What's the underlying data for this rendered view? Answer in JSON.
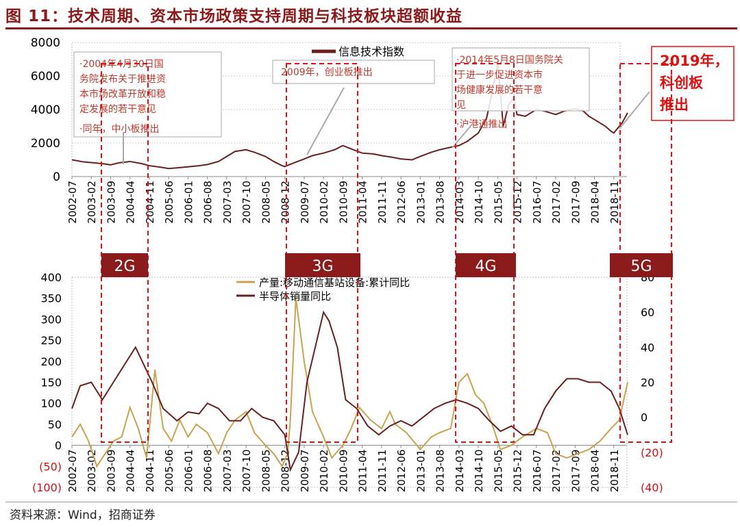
{
  "title": "图 11：技术周期、资本市场政策支持周期与科技板块超额收益",
  "source": "资料来源：Wind，招商证券",
  "colors": {
    "title": "#8b1a1a",
    "index_line": "#6b1e1e",
    "semi_line": "#6b1e1e",
    "base_station_line": "#c9a24e",
    "gen_box": "#8b1a1a",
    "dash_box": "#e01010",
    "negative_tick": "#d01010"
  },
  "chart_data": [
    {
      "type": "line",
      "x_ticks": [
        "2002-07",
        "2003-02",
        "2003-09",
        "2004-04",
        "2004-11",
        "2005-06",
        "2006-01",
        "2006-08",
        "2007-03",
        "2007-10",
        "2008-05",
        "2008-12",
        "2009-07",
        "2010-02",
        "2010-09",
        "2011-04",
        "2011-11",
        "2012-06",
        "2013-01",
        "2013-08",
        "2014-03",
        "2014-10",
        "2015-05",
        "2015-12",
        "2016-07",
        "2017-02",
        "2017-09",
        "2018-04",
        "2018-11"
      ],
      "ylim": [
        0,
        8000
      ],
      "y_ticks": [
        "0",
        "2000",
        "4000",
        "6000",
        "8000"
      ],
      "series": [
        {
          "name": "信息技术指数",
          "x": [
            "2002-07",
            "2002-11",
            "2003-03",
            "2003-07",
            "2003-09",
            "2003-12",
            "2004-04",
            "2004-08",
            "2004-11",
            "2005-03",
            "2005-06",
            "2005-09",
            "2006-01",
            "2006-05",
            "2006-08",
            "2006-12",
            "2007-03",
            "2007-06",
            "2007-10",
            "2008-01",
            "2008-05",
            "2008-08",
            "2008-11",
            "2008-12",
            "2009-03",
            "2009-07",
            "2009-10",
            "2010-02",
            "2010-06",
            "2010-09",
            "2010-12",
            "2011-04",
            "2011-08",
            "2011-11",
            "2012-03",
            "2012-06",
            "2012-10",
            "2013-01",
            "2013-05",
            "2013-08",
            "2013-12",
            "2014-03",
            "2014-06",
            "2014-10",
            "2015-01",
            "2015-03",
            "2015-05",
            "2015-06",
            "2015-07",
            "2015-09",
            "2015-11",
            "2015-12",
            "2016-03",
            "2016-07",
            "2016-10",
            "2017-02",
            "2017-05",
            "2017-09",
            "2017-12",
            "2018-02",
            "2018-04",
            "2018-08",
            "2018-10",
            "2018-11",
            "2019-02",
            "2019-04"
          ],
          "values": [
            1000,
            880,
            820,
            750,
            700,
            820,
            900,
            780,
            650,
            560,
            480,
            520,
            580,
            650,
            720,
            900,
            1200,
            1500,
            1600,
            1450,
            1200,
            900,
            650,
            600,
            800,
            1050,
            1250,
            1400,
            1600,
            1850,
            1650,
            1400,
            1350,
            1250,
            1150,
            1050,
            1000,
            1200,
            1450,
            1600,
            1750,
            1850,
            2100,
            2600,
            3500,
            5000,
            6800,
            5000,
            3000,
            4300,
            4700,
            3700,
            3600,
            4000,
            3900,
            3700,
            3900,
            4050,
            3900,
            3600,
            3400,
            3000,
            2700,
            2600,
            3200,
            3800
          ]
        }
      ],
      "annotations": [
        "·2004年4月30日国务院发布关于推进资本市场改革开放和稳定发展的若干意见",
        "·同年，中小板推出",
        "2009年，创业板推出",
        "·2014年5月8日国务院关于进一步促进资本市场健康发展的若干意见",
        "·沪港通推出",
        "2019年，科创板推出"
      ]
    },
    {
      "type": "line",
      "x_ticks": [
        "2002-07",
        "2003-02",
        "2003-09",
        "2004-04",
        "2004-11",
        "2005-06",
        "2006-01",
        "2006-08",
        "2007-03",
        "2007-10",
        "2008-05",
        "2008-12",
        "2009-07",
        "2010-02",
        "2010-09",
        "2011-04",
        "2011-11",
        "2012-06",
        "2013-01",
        "2013-08",
        "2014-03",
        "2014-10",
        "2015-05",
        "2015-12",
        "2016-07",
        "2017-02",
        "2017-09",
        "2018-04",
        "2018-11"
      ],
      "y_left_ticks": [
        "(100)",
        "(50)",
        "0",
        "50",
        "100",
        "150",
        "200",
        "250",
        "300",
        "350",
        "400"
      ],
      "y_right_ticks": [
        "(40)",
        "(20)",
        "0",
        "20",
        "40",
        "60",
        "80"
      ],
      "y_left_lim": [
        -100,
        400
      ],
      "y_right_lim": [
        -40,
        80
      ],
      "series": [
        {
          "name": "产量:移动通信基站设备:累计同比",
          "axis": "left",
          "x": [
            "2002-07",
            "2002-10",
            "2003-01",
            "2003-04",
            "2003-07",
            "2003-10",
            "2004-01",
            "2004-04",
            "2004-07",
            "2004-10",
            "2005-01",
            "2005-04",
            "2005-07",
            "2005-10",
            "2006-01",
            "2006-04",
            "2006-08",
            "2006-12",
            "2007-03",
            "2007-06",
            "2007-10",
            "2008-01",
            "2008-05",
            "2008-08",
            "2008-11",
            "2009-01",
            "2009-02",
            "2009-04",
            "2009-07",
            "2009-10",
            "2010-02",
            "2010-05",
            "2010-09",
            "2010-12",
            "2011-03",
            "2011-07",
            "2011-11",
            "2012-02",
            "2012-04",
            "2012-08",
            "2013-01",
            "2013-05",
            "2013-08",
            "2013-12",
            "2014-03",
            "2014-06",
            "2014-09",
            "2014-12",
            "2015-03",
            "2015-06",
            "2015-10",
            "2016-02",
            "2016-07",
            "2016-11",
            "2017-02",
            "2017-06",
            "2017-10",
            "2018-02",
            "2018-06",
            "2018-10",
            "2019-01",
            "2019-04"
          ],
          "values": [
            20,
            50,
            10,
            -50,
            -20,
            10,
            20,
            90,
            40,
            -30,
            180,
            40,
            10,
            60,
            20,
            50,
            30,
            -20,
            30,
            60,
            80,
            30,
            0,
            -20,
            -50,
            -20,
            60,
            350,
            200,
            80,
            20,
            -30,
            0,
            40,
            90,
            60,
            40,
            80,
            50,
            30,
            -10,
            20,
            30,
            40,
            150,
            170,
            120,
            100,
            50,
            -10,
            0,
            20,
            40,
            30,
            -20,
            -30,
            -20,
            -10,
            10,
            40,
            60,
            150
          ]
        },
        {
          "name": "半导体销量同比",
          "axis": "right",
          "x": [
            "2002-07",
            "2002-10",
            "2003-02",
            "2003-06",
            "2003-10",
            "2004-02",
            "2004-06",
            "2004-09",
            "2004-12",
            "2005-04",
            "2005-09",
            "2006-01",
            "2006-05",
            "2006-08",
            "2006-12",
            "2007-04",
            "2007-08",
            "2007-12",
            "2008-04",
            "2008-08",
            "2008-12",
            "2009-02",
            "2009-05",
            "2009-08",
            "2009-11",
            "2010-02",
            "2010-04",
            "2010-07",
            "2010-10",
            "2011-02",
            "2011-06",
            "2011-10",
            "2012-02",
            "2012-06",
            "2012-10",
            "2013-02",
            "2013-06",
            "2013-10",
            "2014-02",
            "2014-06",
            "2014-10",
            "2015-02",
            "2015-06",
            "2015-10",
            "2016-02",
            "2016-06",
            "2016-10",
            "2017-02",
            "2017-06",
            "2017-10",
            "2018-02",
            "2018-06",
            "2018-10",
            "2019-01",
            "2019-04"
          ],
          "values": [
            5,
            18,
            20,
            10,
            20,
            30,
            40,
            30,
            20,
            5,
            -2,
            3,
            2,
            8,
            5,
            -2,
            -2,
            5,
            0,
            -2,
            -10,
            -30,
            -20,
            20,
            40,
            60,
            55,
            40,
            10,
            5,
            -5,
            -10,
            -5,
            -2,
            -5,
            0,
            5,
            8,
            10,
            8,
            5,
            -2,
            -8,
            -5,
            -10,
            -10,
            5,
            15,
            22,
            22,
            20,
            20,
            15,
            5,
            -10
          ]
        }
      ],
      "generation_labels": [
        "2G",
        "3G",
        "4G",
        "5G"
      ]
    }
  ]
}
